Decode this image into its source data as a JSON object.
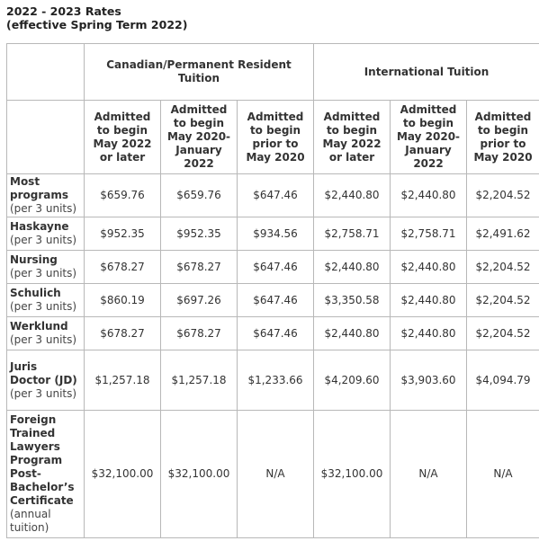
{
  "heading": {
    "title": "2022 - 2023 Rates",
    "subtitle": "(effective Spring Term 2022)"
  },
  "table": {
    "groups": [
      "Canadian/Permanent Resident Tuition",
      "International Tuition"
    ],
    "subheaders": [
      "Admitted to begin May 2022 or later",
      "Admitted to begin May 2020-January 2022",
      "Admitted to begin prior to May 2020",
      "Admitted to begin May 2022 or later",
      "Admitted to begin May 2020-January 2022",
      "Admitted to begin prior to May 2020"
    ],
    "rows": [
      {
        "name": "Most programs",
        "unit": "(per 3 units)",
        "values": [
          "$659.76",
          "$659.76",
          "$647.46",
          "$2,440.80",
          "$2,440.80",
          "$2,204.52"
        ]
      },
      {
        "name": "Haskayne",
        "unit": "(per 3 units)",
        "values": [
          "$952.35",
          "$952.35",
          "$934.56",
          "$2,758.71",
          "$2,758.71",
          "$2,491.62"
        ]
      },
      {
        "name": "Nursing",
        "unit": "(per 3 units)",
        "values": [
          "$678.27",
          "$678.27",
          "$647.46",
          "$2,440.80",
          "$2,440.80",
          "$2,204.52"
        ]
      },
      {
        "name": "Schulich",
        "unit": "(per 3 units)",
        "values": [
          "$860.19",
          "$697.26",
          "$647.46",
          "$3,350.58",
          "$2,440.80",
          "$2,204.52"
        ]
      },
      {
        "name": "Werklund",
        "unit": "(per 3 units)",
        "values": [
          "$678.27",
          "$678.27",
          "$647.46",
          "$2,440.80",
          "$2,440.80",
          "$2,204.52"
        ]
      },
      {
        "name": "Juris Doctor (JD)",
        "unit": "(per 3 units)",
        "values": [
          "$1,257.18",
          "$1,257.18",
          "$1,233.66",
          "$4,209.60",
          "$3,903.60",
          "$4,094.79"
        ]
      },
      {
        "name": "Foreign Trained Lawyers Program Post-Bachelor’s Certificate",
        "unit": "(annual tuition)",
        "values": [
          "$32,100.00",
          "$32,100.00",
          "N/A",
          "$32,100.00",
          "N/A",
          "N/A"
        ]
      }
    ]
  }
}
